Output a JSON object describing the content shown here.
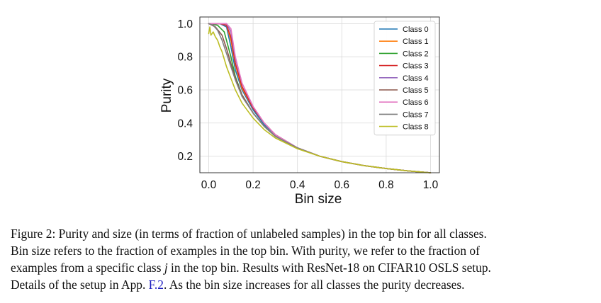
{
  "chart_data": {
    "type": "line",
    "title": "",
    "xlabel": "Bin size",
    "ylabel": "Purity",
    "xlim": [
      -0.04,
      1.04
    ],
    "ylim": [
      0.1,
      1.04
    ],
    "xticks": [
      0.0,
      0.2,
      0.4,
      0.6,
      0.8,
      1.0
    ],
    "xtick_labels": [
      "0.0",
      "0.2",
      "0.4",
      "0.6",
      "0.8",
      "1.0"
    ],
    "yticks": [
      0.2,
      0.4,
      0.6,
      0.8,
      1.0
    ],
    "ytick_labels": [
      "0.2",
      "0.4",
      "0.6",
      "0.8",
      "1.0"
    ],
    "grid": true,
    "legend_position": "top-right",
    "series": [
      {
        "name": "Class 0",
        "color": "#1f77b4",
        "x": [
          0.0,
          0.05,
          0.08,
          0.1,
          0.12,
          0.15,
          0.2,
          0.25,
          0.3,
          0.4,
          0.5,
          0.6,
          0.7,
          0.8,
          0.9,
          1.0
        ],
        "y": [
          1.0,
          1.0,
          0.98,
          0.86,
          0.72,
          0.6,
          0.48,
          0.39,
          0.33,
          0.25,
          0.2,
          0.167,
          0.143,
          0.125,
          0.111,
          0.1
        ]
      },
      {
        "name": "Class 1",
        "color": "#ff7f0e",
        "x": [
          0.0,
          0.05,
          0.08,
          0.1,
          0.12,
          0.15,
          0.2,
          0.25,
          0.3,
          0.4,
          0.5,
          0.6,
          0.7,
          0.8,
          0.9,
          1.0
        ],
        "y": [
          1.0,
          1.0,
          0.99,
          0.9,
          0.75,
          0.61,
          0.49,
          0.4,
          0.33,
          0.25,
          0.2,
          0.167,
          0.143,
          0.125,
          0.111,
          0.1
        ]
      },
      {
        "name": "Class 2",
        "color": "#2ca02c",
        "x": [
          0.0,
          0.04,
          0.07,
          0.1,
          0.12,
          0.15,
          0.2,
          0.25,
          0.3,
          0.4,
          0.5,
          0.6,
          0.7,
          0.8,
          0.9,
          1.0
        ],
        "y": [
          1.0,
          0.99,
          0.95,
          0.8,
          0.68,
          0.57,
          0.46,
          0.38,
          0.32,
          0.25,
          0.2,
          0.167,
          0.143,
          0.125,
          0.111,
          0.1
        ]
      },
      {
        "name": "Class 3",
        "color": "#d62728",
        "x": [
          0.0,
          0.05,
          0.08,
          0.1,
          0.12,
          0.15,
          0.2,
          0.25,
          0.3,
          0.4,
          0.5,
          0.6,
          0.7,
          0.8,
          0.9,
          1.0
        ],
        "y": [
          1.0,
          1.0,
          0.99,
          0.92,
          0.76,
          0.62,
          0.49,
          0.4,
          0.33,
          0.25,
          0.2,
          0.167,
          0.143,
          0.125,
          0.111,
          0.1
        ]
      },
      {
        "name": "Class 4",
        "color": "#9467bd",
        "x": [
          0.0,
          0.05,
          0.08,
          0.1,
          0.12,
          0.15,
          0.2,
          0.25,
          0.3,
          0.4,
          0.5,
          0.6,
          0.7,
          0.8,
          0.9,
          1.0
        ],
        "y": [
          1.0,
          1.0,
          1.0,
          0.95,
          0.79,
          0.64,
          0.5,
          0.4,
          0.33,
          0.25,
          0.2,
          0.167,
          0.143,
          0.125,
          0.111,
          0.1
        ]
      },
      {
        "name": "Class 5",
        "color": "#8c564b",
        "x": [
          0.0,
          0.03,
          0.06,
          0.08,
          0.1,
          0.12,
          0.15,
          0.2,
          0.25,
          0.3,
          0.4,
          0.5,
          0.6,
          0.7,
          0.8,
          0.9,
          1.0
        ],
        "y": [
          1.0,
          0.98,
          0.93,
          0.85,
          0.76,
          0.67,
          0.57,
          0.46,
          0.38,
          0.32,
          0.25,
          0.2,
          0.167,
          0.143,
          0.125,
          0.111,
          0.1
        ]
      },
      {
        "name": "Class 6",
        "color": "#e377c2",
        "x": [
          0.0,
          0.05,
          0.08,
          0.1,
          0.12,
          0.15,
          0.2,
          0.25,
          0.3,
          0.4,
          0.5,
          0.6,
          0.7,
          0.8,
          0.9,
          1.0
        ],
        "y": [
          1.0,
          1.0,
          1.0,
          0.97,
          0.8,
          0.64,
          0.5,
          0.4,
          0.33,
          0.25,
          0.2,
          0.167,
          0.143,
          0.125,
          0.111,
          0.1
        ]
      },
      {
        "name": "Class 7",
        "color": "#7f7f7f",
        "x": [
          0.0,
          0.02,
          0.04,
          0.06,
          0.08,
          0.1,
          0.12,
          0.15,
          0.2,
          0.25,
          0.3,
          0.4,
          0.5,
          0.6,
          0.7,
          0.8,
          0.9,
          1.0
        ],
        "y": [
          1.0,
          0.99,
          0.96,
          0.9,
          0.82,
          0.74,
          0.66,
          0.56,
          0.46,
          0.38,
          0.32,
          0.25,
          0.2,
          0.167,
          0.143,
          0.125,
          0.111,
          0.1
        ]
      },
      {
        "name": "Class 8",
        "color": "#bcbd22",
        "x": [
          0.0,
          0.005,
          0.01,
          0.02,
          0.03,
          0.04,
          0.05,
          0.06,
          0.08,
          0.1,
          0.12,
          0.15,
          0.2,
          0.25,
          0.3,
          0.4,
          0.5,
          0.6,
          0.7,
          0.8,
          0.9,
          1.0
        ],
        "y": [
          0.94,
          0.98,
          0.93,
          0.95,
          0.92,
          0.9,
          0.86,
          0.83,
          0.74,
          0.67,
          0.6,
          0.52,
          0.43,
          0.36,
          0.31,
          0.245,
          0.2,
          0.167,
          0.143,
          0.125,
          0.111,
          0.1
        ]
      }
    ]
  },
  "caption": {
    "lines": [
      "Figure 2: Purity and size (in terms of fraction of unlabeled samples) in the top bin for all classes.",
      "Bin size refers to the fraction of examples in the top bin. With purity, we refer to the fraction of"
    ],
    "line3_pre": "examples from a specific class ",
    "line3_var": "j",
    "line3_post": " in the top bin. Results with ResNet-18 on CIFAR10 OSLS setup.",
    "line4_pre": "Details of the setup in App. ",
    "line4_ref": "F.2",
    "line4_post": ". As the bin size increases for all classes the purity decreases."
  }
}
